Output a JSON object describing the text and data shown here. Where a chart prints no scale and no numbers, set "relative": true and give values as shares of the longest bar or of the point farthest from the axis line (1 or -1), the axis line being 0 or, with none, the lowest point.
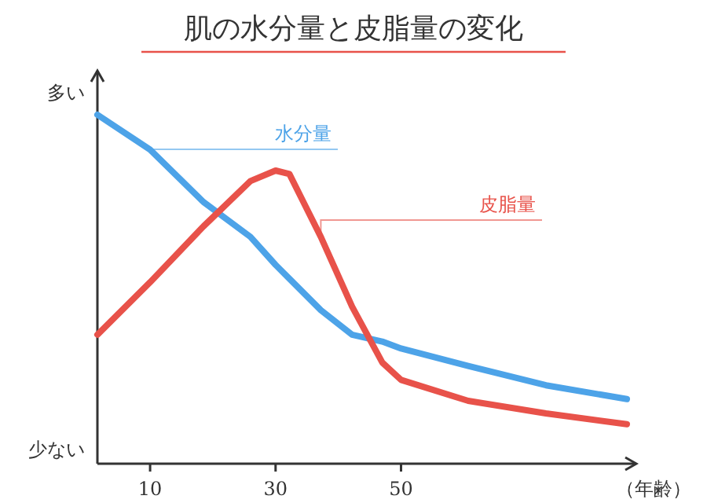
{
  "chart_data": {
    "type": "line",
    "title": "肌の水分量と皮脂量の変化",
    "xlabel": "（年齢）",
    "relative": true,
    "annotations": [
      "多い",
      "少ない"
    ],
    "x": [
      1.6,
      10,
      18.5,
      26,
      30,
      32.2,
      37.2,
      42.2,
      47,
      50,
      60.7,
      73.1,
      86
    ],
    "xlim": [
      1.6,
      87.5
    ],
    "xticks": [
      10,
      30,
      50
    ],
    "series": [
      {
        "name": "水分量",
        "color": "#4da3e8",
        "values": [
          1.0,
          0.9,
          0.75,
          0.65,
          0.57,
          0.53,
          0.44,
          0.37,
          0.35,
          0.33,
          0.28,
          0.225,
          0.185
        ]
      },
      {
        "name": "皮脂量",
        "color": "#e8524a",
        "values": [
          0.37,
          0.52,
          0.68,
          0.81,
          0.84,
          0.83,
          0.65,
          0.45,
          0.29,
          0.24,
          0.18,
          0.144,
          0.113
        ]
      }
    ],
    "marker": "none",
    "line_style": "solid"
  }
}
